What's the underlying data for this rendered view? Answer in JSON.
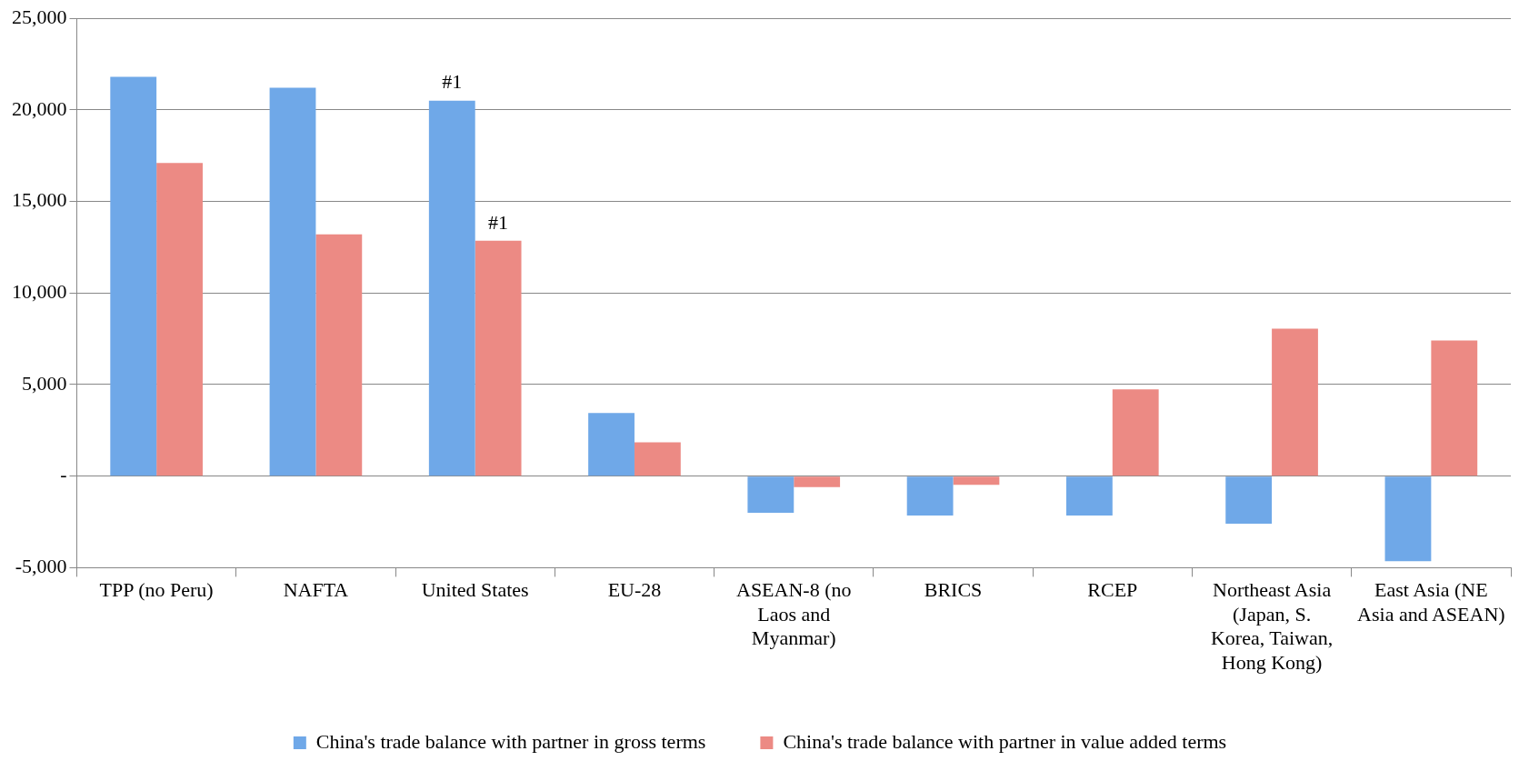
{
  "chart_data": {
    "type": "bar",
    "categories": [
      "TPP (no Peru)",
      "NAFTA",
      "United States",
      "EU-28",
      "ASEAN-8 (no Laos and Myanmar)",
      "BRICS",
      "RCEP",
      "Northeast Asia (Japan, S. Korea, Taiwan, Hong Kong)",
      "East Asia (NE Asia and ASEAN)"
    ],
    "series": [
      {
        "name": "China's trade balance with partner in gross terms",
        "color": "#6fa8e8",
        "values": [
          21800,
          21200,
          20500,
          3450,
          -2000,
          -2150,
          -2150,
          -2600,
          -4650
        ]
      },
      {
        "name": "China's trade balance with partner in value added terms",
        "color": "#ec8a84",
        "values": [
          17100,
          13200,
          12850,
          1850,
          -600,
          -470,
          4740,
          8050,
          7400
        ]
      }
    ],
    "ylim": [
      -5000,
      25000
    ],
    "yticks": [
      {
        "value": -5000,
        "label": "-5,000"
      },
      {
        "value": 0,
        "label": "-"
      },
      {
        "value": 5000,
        "label": "5,000"
      },
      {
        "value": 10000,
        "label": "10,000"
      },
      {
        "value": 15000,
        "label": "15,000"
      },
      {
        "value": 20000,
        "label": "20,000"
      },
      {
        "value": 25000,
        "label": "25,000"
      }
    ],
    "grid": "y",
    "legend": "bottom",
    "annotations": [
      {
        "text": "#1",
        "x": "United States",
        "y": 20500
      },
      {
        "text": "#1",
        "x": "United States",
        "y": 12850
      }
    ]
  }
}
